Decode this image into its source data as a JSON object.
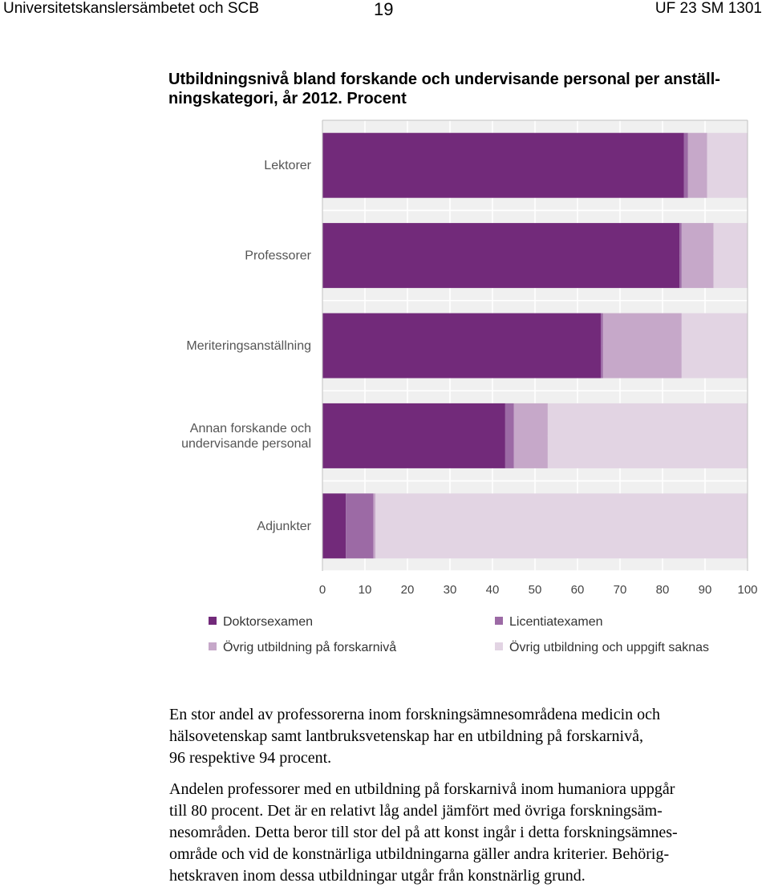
{
  "header": {
    "left": "Universitetskanslersämbetet och SCB",
    "center": "19",
    "right": "UF 23 SM 1301"
  },
  "chart_title": "Utbildningsnivå bland forskande och undervisande personal per anställ-\nningskategori, år 2012. Procent",
  "chart_data": {
    "type": "bar",
    "orientation": "horizontal",
    "stacked": true,
    "title": "Utbildningsnivå bland forskande och undervisande personal per anställningskategori, år 2012. Procent",
    "categories": [
      "Lektorer",
      "Professorer",
      "Meriteringsanställning",
      "Annan forskande och\nundervisande personal",
      "Adjunkter"
    ],
    "series": [
      {
        "name": "Doktorsexamen",
        "color": "#722a7a",
        "values": [
          85,
          84,
          65.5,
          43,
          5.5
        ]
      },
      {
        "name": "Licentiatexamen",
        "color": "#9c6aa5",
        "values": [
          1,
          0.5,
          0.5,
          2,
          6.5
        ]
      },
      {
        "name": "Övrig utbildning på forskarnivå",
        "color": "#c6a8c9",
        "values": [
          4.5,
          7.5,
          18.5,
          8,
          0.5
        ]
      },
      {
        "name": "Övrig utbildning och uppgift saknas",
        "color": "#e2d4e3",
        "values": [
          9.5,
          8,
          15.5,
          47,
          87.5
        ]
      }
    ],
    "xlim": [
      0,
      100
    ],
    "x_ticks": [
      "0",
      "10",
      "20",
      "30",
      "40",
      "50",
      "60",
      "70",
      "80",
      "90",
      "100"
    ],
    "grid": true,
    "grid_background": "#f0f0f0",
    "legend_position": "bottom"
  },
  "paragraphs": [
    "En stor andel av professorerna inom forskningsämnesområdena medicin och\nhälsovetenskap samt lantbruksvetenskap har en utbildning på forskarnivå,\n96 respektive 94 procent.",
    "Andelen professorer med en utbildning på forskarnivå inom humaniora uppgår\ntill 80 procent. Det är en relativt låg andel jämfört med övriga forskningsäm-\nnesområden. Detta beror till stor del på att konst ingår i detta forskningsämnes-\nområde och vid de konstnärliga utbildningarna gäller andra kriterier. Behörig-\nhetskraven inom dessa utbildningar utgår från konstnärlig grund."
  ]
}
